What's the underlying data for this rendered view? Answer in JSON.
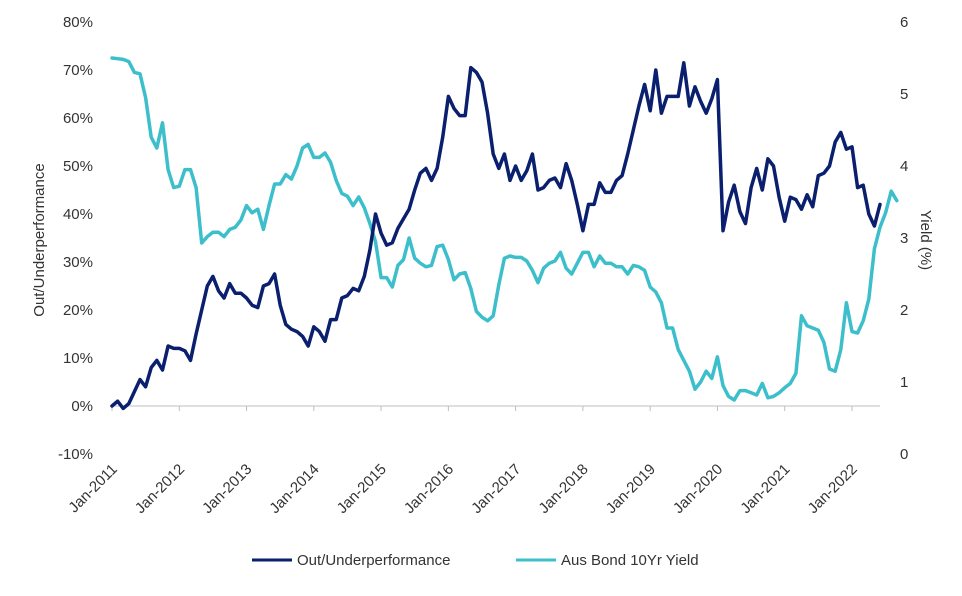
{
  "chart_data": {
    "type": "line",
    "title": "",
    "ylabel": "Out/Underperformance",
    "y2label": "Yield (%)",
    "ylim": [
      -10,
      80
    ],
    "y2lim": [
      0,
      6
    ],
    "yticks": [
      "-10%",
      "0%",
      "10%",
      "20%",
      "30%",
      "40%",
      "50%",
      "60%",
      "70%",
      "80%"
    ],
    "yticks_values": [
      -10,
      0,
      10,
      20,
      30,
      40,
      50,
      60,
      70,
      80
    ],
    "y2ticks": [
      "0",
      "1",
      "2",
      "3",
      "4",
      "5",
      "6"
    ],
    "y2ticks_values": [
      0,
      1,
      2,
      3,
      4,
      5,
      6
    ],
    "xticks": [
      "Jan-2011",
      "Jan-2012",
      "Jan-2013",
      "Jan-2014",
      "Jan-2015",
      "Jan-2016",
      "Jan-2017",
      "Jan-2018",
      "Jan-2019",
      "Jan-2020",
      "Jan-2021",
      "Jan-2022"
    ],
    "x_start": "Jan-2011",
    "x_end": "Jul-2022",
    "grid": false,
    "legend_position": "bottom",
    "series": [
      {
        "name": "Out/Underperformance",
        "axis": "left",
        "color": "#0a1f6e",
        "values": [
          0,
          1,
          -0.5,
          0.5,
          3,
          5.5,
          4,
          8,
          9.5,
          7.5,
          12.5,
          12,
          12,
          11.5,
          9.5,
          15,
          20,
          25,
          27,
          24,
          22.5,
          25.5,
          23.5,
          23.5,
          22.5,
          21,
          20.5,
          25,
          25.5,
          27.5,
          21,
          17,
          16,
          15.5,
          14.5,
          12.5,
          16.5,
          15.5,
          13.5,
          18,
          18,
          22.5,
          23,
          24.5,
          24,
          27,
          32.5,
          40,
          36,
          33.5,
          34,
          37,
          39,
          41,
          45,
          48.5,
          49.5,
          47,
          49.5,
          56,
          64.5,
          62,
          60.5,
          60.5,
          70.5,
          69.5,
          67.5,
          61,
          52.5,
          49.5,
          52.5,
          47,
          50,
          47,
          49,
          52.5,
          45,
          45.5,
          47,
          47.5,
          45.5,
          50.5,
          47,
          42,
          36.5,
          42,
          42,
          46.5,
          44.5,
          44.5,
          47,
          48,
          52.5,
          57.5,
          62.5,
          67,
          61.5,
          70,
          61,
          64.5,
          64.5,
          64.5,
          71.5,
          62.5,
          66.5,
          63.5,
          61,
          64,
          68,
          36.5,
          42.5,
          46,
          40.5,
          38,
          45.5,
          49.5,
          45,
          51.5,
          50,
          43.5,
          38.5,
          43.5,
          43,
          41,
          44,
          41.5,
          48,
          48.5,
          50,
          55,
          57,
          53.5,
          54,
          45.5,
          46,
          40,
          37.5,
          42
        ]
      },
      {
        "name": "Aus Bond 10Yr Yield",
        "axis": "right",
        "color": "#3cbfcb",
        "values": [
          5.5,
          5.49,
          5.48,
          5.45,
          5.3,
          5.28,
          4.95,
          4.4,
          4.25,
          4.6,
          3.95,
          3.7,
          3.72,
          3.95,
          3.95,
          3.7,
          2.93,
          3.02,
          3.08,
          3.08,
          3.02,
          3.12,
          3.15,
          3.25,
          3.45,
          3.35,
          3.4,
          3.12,
          3.45,
          3.75,
          3.75,
          3.88,
          3.82,
          4,
          4.25,
          4.3,
          4.12,
          4.12,
          4.18,
          4.05,
          3.8,
          3.62,
          3.58,
          3.45,
          3.57,
          3.42,
          3.2,
          2.95,
          2.45,
          2.45,
          2.32,
          2.62,
          2.7,
          3,
          2.72,
          2.65,
          2.6,
          2.62,
          2.88,
          2.9,
          2.7,
          2.42,
          2.5,
          2.52,
          2.3,
          1.98,
          1.9,
          1.85,
          1.92,
          2.35,
          2.72,
          2.75,
          2.73,
          2.73,
          2.68,
          2.55,
          2.38,
          2.58,
          2.65,
          2.68,
          2.8,
          2.58,
          2.5,
          2.65,
          2.8,
          2.8,
          2.6,
          2.75,
          2.65,
          2.65,
          2.6,
          2.6,
          2.5,
          2.62,
          2.6,
          2.55,
          2.32,
          2.25,
          2.1,
          1.75,
          1.75,
          1.45,
          1.3,
          1.15,
          0.9,
          1.0,
          1.15,
          1.05,
          1.35,
          0.95,
          0.8,
          0.75,
          0.88,
          0.88,
          0.85,
          0.82,
          0.98,
          0.78,
          0.8,
          0.85,
          0.92,
          0.98,
          1.12,
          1.92,
          1.78,
          1.75,
          1.72,
          1.55,
          1.18,
          1.15,
          1.45,
          2.1,
          1.7,
          1.68,
          1.85,
          2.15,
          2.85,
          3.15,
          3.35,
          3.65,
          3.52
        ]
      }
    ]
  }
}
